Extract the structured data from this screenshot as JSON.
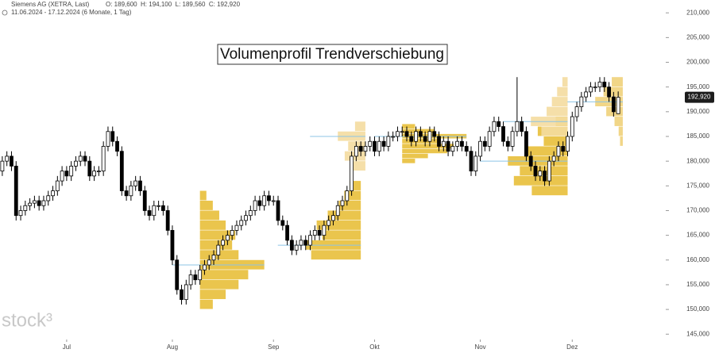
{
  "chart_data": {
    "type": "candlestick",
    "header": {
      "symbol": "Siemens AG (XETRA, Last)",
      "ohlc": "O: 189,600  H: 194,100  L: 189,560  C: 192,920",
      "range": "11.06.2024 - 17.12.2024 (6 Monate, 1 Tag)"
    },
    "title": "Volumenprofil Trendverschiebung",
    "watermark": "stock³",
    "up_color": "#ffffff",
    "down_color": "#000000",
    "poc_color": "#8cc4e6",
    "open": [
      178,
      180,
      181,
      179,
      169,
      170,
      171,
      171.5,
      172,
      171,
      172,
      173,
      174,
      176,
      178,
      177,
      179,
      180,
      181,
      180,
      177,
      178,
      178,
      183,
      186,
      184,
      182,
      174,
      173,
      175,
      176,
      174,
      170,
      169,
      171,
      171,
      170,
      166,
      160,
      154,
      152,
      155,
      157,
      156,
      158,
      159,
      160,
      161,
      163,
      164,
      165,
      166,
      167,
      168,
      169,
      170,
      172,
      171,
      173,
      172,
      172,
      168,
      167,
      164,
      162,
      163,
      164,
      163,
      165,
      166,
      165,
      167,
      168,
      169,
      171,
      172,
      174,
      181,
      183,
      182,
      183,
      184,
      182,
      184,
      183,
      185,
      185,
      186,
      186,
      185,
      184,
      186,
      185,
      184,
      186,
      185,
      183,
      184,
      182,
      183,
      184,
      183,
      182,
      178,
      181,
      184,
      183,
      186,
      188,
      187,
      184,
      183,
      186,
      188,
      186,
      181,
      179,
      177,
      178,
      176,
      180,
      181,
      183,
      182,
      185,
      189,
      191,
      193,
      194,
      195,
      195,
      196,
      195,
      193,
      189.6
    ],
    "high": [
      181,
      182,
      182,
      180,
      171,
      172,
      172.5,
      173,
      173,
      173,
      174,
      175,
      177,
      179,
      179,
      180,
      181,
      182,
      182,
      181,
      179,
      179,
      184,
      187,
      187,
      185,
      183,
      175,
      176,
      177,
      177,
      175,
      171,
      172,
      172,
      172,
      171,
      167,
      161,
      155,
      156,
      158,
      158,
      159,
      160,
      161,
      162,
      164,
      165,
      166,
      167,
      168,
      169,
      170,
      171,
      173,
      173,
      174,
      174,
      173,
      173,
      169,
      168,
      165,
      164,
      165,
      165,
      166,
      167,
      167,
      168,
      169,
      170,
      172,
      173,
      175,
      182,
      184,
      184,
      184,
      185,
      185,
      185,
      185,
      186,
      186,
      187,
      187,
      187,
      186,
      187,
      187,
      186,
      187,
      187,
      186,
      185,
      185,
      184,
      185,
      185,
      184,
      183,
      182,
      185,
      185,
      187,
      189,
      189,
      188,
      185,
      187,
      197,
      189,
      187,
      182,
      180,
      179,
      179,
      181,
      182,
      184,
      184,
      186,
      190,
      192,
      194,
      195,
      196,
      196,
      197,
      197,
      196,
      194,
      194.1
    ],
    "low": [
      177,
      179,
      178,
      168,
      168,
      169,
      170,
      170.5,
      170,
      170,
      171,
      172,
      173,
      175,
      176,
      176,
      178,
      179,
      179,
      176,
      176,
      177,
      177,
      182,
      183,
      181,
      173,
      172,
      172,
      174,
      173,
      169,
      168,
      168,
      170,
      169,
      165,
      159,
      153,
      151,
      151,
      154,
      155,
      155,
      157,
      158,
      159,
      160,
      162,
      163,
      164,
      165,
      166,
      167,
      168,
      169,
      170,
      170,
      171,
      171,
      167,
      166,
      163,
      161,
      161,
      162,
      162,
      162,
      164,
      164,
      164,
      166,
      167,
      168,
      170,
      171,
      173,
      180,
      181,
      181,
      182,
      181,
      181,
      182,
      182,
      184,
      184,
      185,
      184,
      183,
      183,
      184,
      183,
      183,
      184,
      182,
      182,
      181,
      181,
      182,
      182,
      181,
      177,
      177,
      180,
      182,
      182,
      185,
      186,
      183,
      182,
      182,
      185,
      185,
      180,
      178,
      176,
      176,
      175,
      175,
      179,
      180,
      181,
      181,
      184,
      188,
      190,
      192,
      193,
      194,
      194,
      194,
      192,
      189,
      189.56
    ],
    "close": [
      180,
      181,
      179,
      169,
      170,
      171,
      171.5,
      172,
      171,
      172,
      173,
      174,
      176,
      178,
      177,
      179,
      180,
      181,
      180,
      177,
      178,
      178,
      183,
      186,
      184,
      182,
      174,
      173,
      175,
      176,
      174,
      170,
      169,
      171,
      171,
      170,
      166,
      160,
      154,
      152,
      155,
      157,
      156,
      158,
      159,
      160,
      161,
      163,
      164,
      165,
      166,
      167,
      168,
      169,
      170,
      172,
      171,
      173,
      172,
      172,
      168,
      167,
      164,
      162,
      163,
      164,
      163,
      165,
      166,
      165,
      167,
      168,
      169,
      171,
      172,
      174,
      181,
      183,
      182,
      183,
      184,
      182,
      184,
      183,
      185,
      185,
      186,
      186,
      185,
      184,
      186,
      185,
      184,
      186,
      185,
      183,
      184,
      182,
      183,
      184,
      183,
      182,
      178,
      181,
      184,
      183,
      186,
      188,
      187,
      184,
      183,
      186,
      188,
      186,
      181,
      179,
      177,
      178,
      176,
      180,
      181,
      183,
      182,
      185,
      189,
      191,
      193,
      194,
      195,
      195,
      196,
      195,
      193,
      190,
      192.92
    ],
    "last_price": {
      "value": 192.92,
      "label": "192,920"
    },
    "profiles": [
      {
        "start": 43,
        "end": 57,
        "side": "right",
        "color": "#e8bf3a",
        "prices": [
          151,
          153,
          155,
          157,
          159,
          161,
          163,
          165,
          167,
          169,
          171,
          173
        ],
        "volumes": [
          20,
          40,
          60,
          75,
          100,
          60,
          50,
          55,
          40,
          30,
          20,
          10
        ]
      },
      {
        "start": 66,
        "end": 78,
        "side": "left",
        "color": "#e8bf3a",
        "prices": [
          161,
          163,
          165,
          167,
          169,
          171,
          173,
          175
        ],
        "volumes": [
          90,
          100,
          70,
          80,
          60,
          40,
          30,
          20
        ]
      },
      {
        "start": 73,
        "end": 79,
        "side": "left",
        "color": "#f4dca0",
        "prices": [
          179,
          181,
          183,
          185,
          187
        ],
        "volumes": [
          40,
          60,
          50,
          80,
          30
        ]
      },
      {
        "start": 87,
        "end": 101,
        "side": "right",
        "color": "#e8bf3a",
        "prices": [
          180,
          181,
          182,
          183,
          184,
          185,
          186,
          187
        ],
        "volumes": [
          20,
          40,
          70,
          80,
          60,
          100,
          50,
          20
        ]
      },
      {
        "start": 110,
        "end": 123,
        "side": "left",
        "color": "#e8bf3a",
        "prices": [
          174,
          176,
          178,
          180,
          182,
          184,
          186,
          188
        ],
        "volumes": [
          60,
          90,
          80,
          100,
          70,
          40,
          50,
          20
        ]
      },
      {
        "start": 115,
        "end": 123,
        "side": "left",
        "color": "#f4dca0",
        "prices": [
          186,
          188,
          190,
          192,
          194,
          196
        ],
        "volumes": [
          50,
          70,
          40,
          30,
          20,
          10
        ]
      },
      {
        "start": 129,
        "end": 135,
        "side": "left",
        "color": "#f0d27a",
        "prices": [
          184,
          186,
          188,
          190,
          192,
          194,
          196
        ],
        "volumes": [
          10,
          15,
          30,
          60,
          100,
          70,
          40
        ]
      }
    ],
    "xlim": [
      -0.5,
      144
    ],
    "xticks": [
      {
        "value": 14,
        "label": "Jul"
      },
      {
        "value": 37,
        "label": "Aug"
      },
      {
        "value": 59,
        "label": "Sep"
      },
      {
        "value": 81,
        "label": "Okt"
      },
      {
        "value": 104,
        "label": "Nov"
      },
      {
        "value": 124,
        "label": "Dez"
      }
    ],
    "ylim": [
      144.4,
      212.6
    ],
    "yticks": [
      {
        "value": 145,
        "label": "145,000"
      },
      {
        "value": 150,
        "label": "150,000"
      },
      {
        "value": 155,
        "label": "155,000"
      },
      {
        "value": 160,
        "label": "160,000"
      },
      {
        "value": 165,
        "label": "165,000"
      },
      {
        "value": 170,
        "label": "170,000"
      },
      {
        "value": 175,
        "label": "175,000"
      },
      {
        "value": 180,
        "label": "180,000"
      },
      {
        "value": 185,
        "label": "185,000"
      },
      {
        "value": 190,
        "label": "190,000"
      },
      {
        "value": 195,
        "label": "195,000"
      },
      {
        "value": 200,
        "label": "200,000"
      },
      {
        "value": 205,
        "label": "205,000"
      },
      {
        "value": 210,
        "label": "210,000"
      }
    ]
  }
}
